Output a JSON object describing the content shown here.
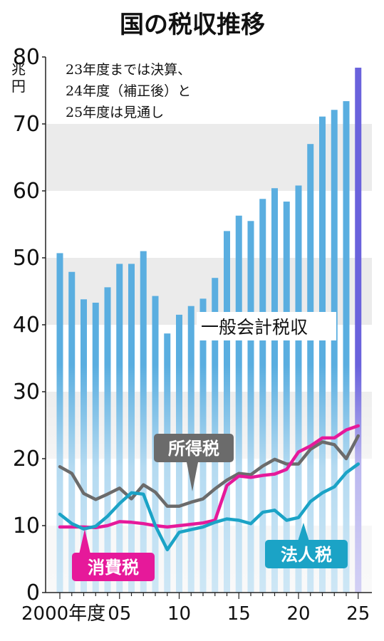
{
  "chart_data": {
    "type": "bar+line",
    "title": "国の税収推移",
    "y_unit": "兆円",
    "note": [
      "23年度までは決算、",
      "24年度（補正後）と",
      "25年度は見通し"
    ],
    "ylim": [
      0,
      80
    ],
    "y_ticks": [
      0,
      10,
      20,
      30,
      40,
      50,
      60,
      70,
      80
    ],
    "x_label_first": "2000年度",
    "x_tick_labels": [
      {
        "year": 2000,
        "label": "2000年度"
      },
      {
        "year": 2005,
        "label": "05"
      },
      {
        "year": 2010,
        "label": "10"
      },
      {
        "year": 2015,
        "label": "15"
      },
      {
        "year": 2020,
        "label": "20"
      },
      {
        "year": 2025,
        "label": "25"
      }
    ],
    "years": [
      2000,
      2001,
      2002,
      2003,
      2004,
      2005,
      2006,
      2007,
      2008,
      2009,
      2010,
      2011,
      2012,
      2013,
      2014,
      2015,
      2016,
      2017,
      2018,
      2019,
      2020,
      2021,
      2022,
      2023,
      2024,
      2025
    ],
    "series": [
      {
        "name": "一般会計税収",
        "kind": "bar",
        "color": "#5aaee0",
        "highlight_color": "#6a62dc",
        "highlight_year": 2025,
        "values": [
          50.7,
          47.9,
          43.8,
          43.3,
          45.6,
          49.1,
          49.1,
          51.0,
          44.3,
          38.7,
          41.5,
          42.8,
          43.9,
          47.0,
          54.0,
          56.3,
          55.5,
          58.8,
          60.4,
          58.4,
          60.8,
          67.0,
          71.1,
          72.1,
          73.4,
          78.4
        ]
      },
      {
        "name": "所得税",
        "kind": "line",
        "color": "#6b6b6b",
        "values": [
          18.8,
          17.8,
          14.8,
          13.9,
          14.7,
          15.6,
          14.0,
          16.1,
          15.0,
          12.9,
          12.9,
          13.5,
          14.0,
          15.5,
          16.8,
          17.8,
          17.6,
          18.9,
          19.9,
          19.2,
          19.2,
          21.4,
          22.5,
          22.1,
          20.0,
          23.4
        ]
      },
      {
        "name": "消費税",
        "kind": "line",
        "color": "#e6199a",
        "values": [
          9.8,
          9.8,
          9.8,
          9.7,
          10.0,
          10.6,
          10.5,
          10.3,
          10.0,
          9.8,
          10.0,
          10.2,
          10.4,
          10.8,
          16.0,
          17.4,
          17.2,
          17.5,
          17.7,
          18.4,
          21.0,
          21.9,
          23.1,
          23.1,
          24.3,
          24.9
        ]
      },
      {
        "name": "法人税",
        "kind": "line",
        "color": "#1ba3c6",
        "values": [
          11.7,
          10.3,
          9.5,
          9.9,
          11.4,
          13.3,
          14.9,
          14.7,
          10.0,
          6.4,
          9.0,
          9.4,
          9.8,
          10.5,
          11.0,
          10.8,
          10.3,
          12.0,
          12.3,
          10.8,
          11.2,
          13.6,
          14.9,
          15.8,
          17.9,
          19.2
        ]
      }
    ],
    "labels": {
      "general": "一般会計税収",
      "income": "所得税",
      "consumption": "消費税",
      "corporate": "法人税"
    }
  }
}
